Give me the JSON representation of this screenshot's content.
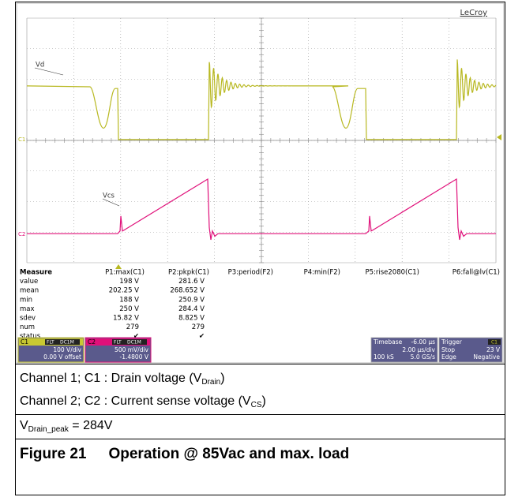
{
  "scope": {
    "brand": "LeCroy",
    "trace_vd": "Vd",
    "trace_vcs": "Vcs",
    "marker_c1": "C1",
    "marker_c2": "C2",
    "measure": {
      "header": [
        "Measure",
        "P1:max(C1)",
        "P2:pkpk(C1)",
        "P3:period(F2)",
        "P4:min(F2)",
        "P5:rise2080(C1)",
        "P6:fall@lv(C1)"
      ],
      "rows": [
        [
          "value",
          "198 V",
          "281.6 V"
        ],
        [
          "mean",
          "202.25 V",
          "268.652 V"
        ],
        [
          "min",
          "188 V",
          "250.9 V"
        ],
        [
          "max",
          "250 V",
          "284.4 V"
        ],
        [
          "sdev",
          "15.82 V",
          "8.825 V"
        ],
        [
          "num",
          "279",
          "279"
        ],
        [
          "status",
          "✔",
          "✔"
        ]
      ]
    },
    "c1": {
      "label": "C1",
      "tags": [
        "FLT",
        "DC1M"
      ],
      "scale": "100 V/div",
      "offset": "0.00 V offset"
    },
    "c2": {
      "label": "C2",
      "tags": [
        "FLT",
        "DC1M"
      ],
      "scale": "500 mV/div",
      "offset": "-1.4800 V"
    },
    "timebase": {
      "label": "Timebase",
      "delay": "-6.00 µs",
      "scale": "2.00 µs/div",
      "samples": "100 kS",
      "rate": "5.0 GS/s"
    },
    "trigger": {
      "label": "Trigger",
      "channel": "C1",
      "mode": "Stop",
      "level": "23 V",
      "type": "Edge",
      "slope": "Negative"
    }
  },
  "captions": {
    "line1": {
      "text": "Channel 1; C1 : Drain voltage (V",
      "sub": "Drain",
      "end": ")"
    },
    "line2": {
      "text": "Channel 2; C2 : Current sense voltage (V",
      "sub": "CS",
      "end": ")"
    },
    "line3": {
      "text": "V",
      "sub": "Drain_peak",
      "end": " = 284V"
    },
    "figure": {
      "number": "Figure 21",
      "title": "Operation @ 85Vac and max. load"
    }
  }
}
